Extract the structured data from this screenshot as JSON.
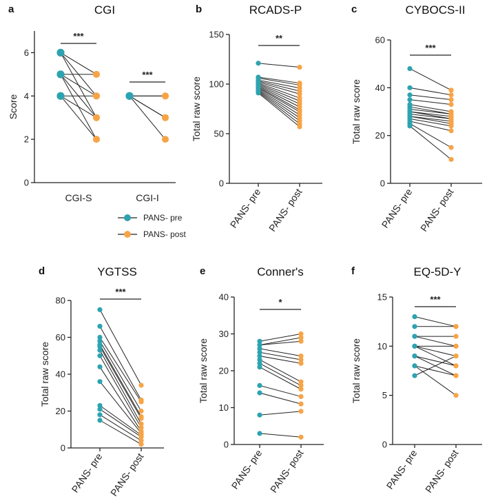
{
  "colors": {
    "pre": "#2ea3b0",
    "post": "#f7a446",
    "line": "#222222"
  },
  "legend": {
    "pre_label": "PANS- pre",
    "post_label": "PANS- post"
  },
  "chart_data": [
    {
      "id": "a",
      "type": "scatter",
      "title": "CGI",
      "ylabel": "Score",
      "ylim": [
        0,
        7
      ],
      "yticks": [
        0,
        2,
        4,
        6
      ],
      "groups": [
        {
          "label": "CGI-S",
          "significance": "***",
          "pairs": [
            [
              6,
              5
            ],
            [
              6,
              4
            ],
            [
              6,
              3
            ],
            [
              5,
              5
            ],
            [
              5,
              4
            ],
            [
              5,
              3
            ],
            [
              5,
              2
            ],
            [
              4,
              4
            ],
            [
              4,
              3
            ],
            [
              4,
              2
            ]
          ]
        },
        {
          "label": "CGI-I",
          "significance": "***",
          "pairs": [
            [
              4,
              4
            ],
            [
              4,
              3
            ],
            [
              4,
              2
            ],
            [
              4,
              4
            ],
            [
              4,
              3
            ]
          ]
        }
      ]
    },
    {
      "id": "b",
      "type": "scatter",
      "title": "RCADS-P",
      "ylabel": "Total raw score",
      "ylim": [
        0,
        150
      ],
      "yticks": [
        0,
        50,
        100,
        150
      ],
      "categories": [
        "PANS- pre",
        "PANS- post"
      ],
      "significance": "**",
      "pairs": [
        [
          121,
          117
        ],
        [
          107,
          101
        ],
        [
          106,
          99
        ],
        [
          104,
          96
        ],
        [
          103,
          93
        ],
        [
          102,
          90
        ],
        [
          101,
          86
        ],
        [
          100,
          83
        ],
        [
          99,
          80
        ],
        [
          98,
          77
        ],
        [
          97,
          74
        ],
        [
          96,
          72
        ],
        [
          95,
          69
        ],
        [
          94,
          66
        ],
        [
          93,
          63
        ],
        [
          92,
          60
        ],
        [
          91,
          57
        ]
      ]
    },
    {
      "id": "c",
      "type": "scatter",
      "title": "CYBOCS-II",
      "ylabel": "Total raw score",
      "ylim": [
        0,
        60
      ],
      "yticks": [
        0,
        20,
        40,
        60
      ],
      "categories": [
        "PANS- pre",
        "PANS- post"
      ],
      "significance": "***",
      "pairs": [
        [
          48,
          39
        ],
        [
          40,
          37
        ],
        [
          37,
          35
        ],
        [
          35,
          33
        ],
        [
          33,
          30
        ],
        [
          32,
          29
        ],
        [
          31,
          29
        ],
        [
          30,
          28
        ],
        [
          30,
          27
        ],
        [
          29,
          27
        ],
        [
          28,
          26
        ],
        [
          28,
          25
        ],
        [
          27,
          24
        ],
        [
          26,
          22
        ],
        [
          25,
          15
        ],
        [
          24,
          10
        ]
      ]
    },
    {
      "id": "d",
      "type": "scatter",
      "title": "YGTSS",
      "ylabel": "Total raw score",
      "ylim": [
        0,
        80
      ],
      "yticks": [
        0,
        20,
        40,
        60,
        80
      ],
      "categories": [
        "PANS- pre",
        "PANS- post"
      ],
      "significance": "***",
      "pairs": [
        [
          75,
          34
        ],
        [
          66,
          26
        ],
        [
          60,
          25
        ],
        [
          58,
          20
        ],
        [
          56,
          17
        ],
        [
          55,
          16
        ],
        [
          53,
          13
        ],
        [
          50,
          11
        ],
        [
          44,
          9
        ],
        [
          36,
          8
        ],
        [
          23,
          7
        ],
        [
          21,
          6
        ],
        [
          18,
          4
        ],
        [
          15,
          2
        ]
      ]
    },
    {
      "id": "e",
      "type": "scatter",
      "title": "Conner's",
      "ylabel": "Total raw score",
      "ylim": [
        0,
        40
      ],
      "yticks": [
        0,
        10,
        20,
        30,
        40
      ],
      "categories": [
        "PANS- pre",
        "PANS- post"
      ],
      "significance": "*",
      "pairs": [
        [
          28,
          30
        ],
        [
          27,
          29
        ],
        [
          27,
          28
        ],
        [
          26,
          24
        ],
        [
          25,
          23
        ],
        [
          24,
          22
        ],
        [
          23,
          17
        ],
        [
          22,
          16
        ],
        [
          21,
          15
        ],
        [
          16,
          13
        ],
        [
          14,
          11
        ],
        [
          8,
          9
        ],
        [
          3,
          2
        ]
      ]
    },
    {
      "id": "f",
      "type": "scatter",
      "title": "EQ-5D-Y",
      "ylabel": "Total raw score",
      "ylim": [
        0,
        15
      ],
      "yticks": [
        0,
        5,
        10,
        15
      ],
      "categories": [
        "PANS- pre",
        "PANS- post"
      ],
      "significance": "***",
      "pairs": [
        [
          13,
          12
        ],
        [
          12,
          12
        ],
        [
          11,
          11
        ],
        [
          11,
          10
        ],
        [
          10,
          10
        ],
        [
          10,
          9
        ],
        [
          10,
          8
        ],
        [
          9,
          8
        ],
        [
          9,
          7
        ],
        [
          8,
          7
        ],
        [
          8,
          5
        ],
        [
          7,
          9
        ]
      ]
    }
  ]
}
